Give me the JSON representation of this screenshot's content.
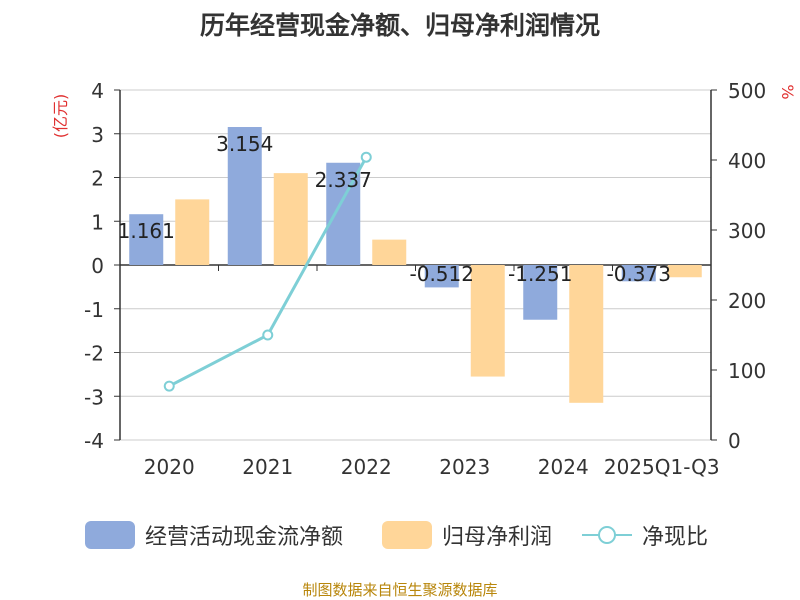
{
  "title": "历年经营现金净额、归母净利润情况",
  "source": "制图数据来自恒生聚源数据库",
  "legend": {
    "cash_flow": "经营活动现金流净额",
    "net_profit": "归母净利润",
    "ratio": "净现比"
  },
  "colors": {
    "cash_flow": "#8faadc",
    "net_profit": "#ffd699",
    "ratio": "#7ecfd6",
    "axis_unit": "#e03030",
    "source": "#b8860b"
  },
  "chart_data": {
    "type": "bar",
    "title": "历年经营现金净额、归母净利润情况",
    "categories": [
      "2020",
      "2021",
      "2022",
      "2023",
      "2024",
      "2025Q1-Q3"
    ],
    "series": [
      {
        "name": "经营活动现金流净额",
        "type": "bar",
        "axis": "left",
        "values": [
          1.161,
          3.154,
          2.337,
          -0.512,
          -1.251,
          -0.373
        ],
        "labels": [
          "1.161",
          "3.154",
          "2.337",
          "-0.512",
          "-1.251",
          "-0.373"
        ]
      },
      {
        "name": "归母净利润",
        "type": "bar",
        "axis": "left",
        "values": [
          1.5,
          2.1,
          0.58,
          -2.55,
          -3.15,
          -0.28
        ]
      },
      {
        "name": "净现比",
        "type": "line",
        "axis": "right",
        "values": [
          77,
          150,
          404,
          null,
          null,
          null
        ]
      }
    ],
    "y_left": {
      "unit": "(亿元)",
      "range": [
        -4,
        4
      ],
      "ticks": [
        "-4",
        "-3",
        "-2",
        "-1",
        "0",
        "1",
        "2",
        "3",
        "4"
      ]
    },
    "y_right": {
      "unit": "%",
      "range": [
        0,
        500
      ],
      "ticks": [
        "0",
        "100",
        "200",
        "300",
        "400",
        "500"
      ]
    },
    "grid": true,
    "legend_position": "bottom"
  }
}
